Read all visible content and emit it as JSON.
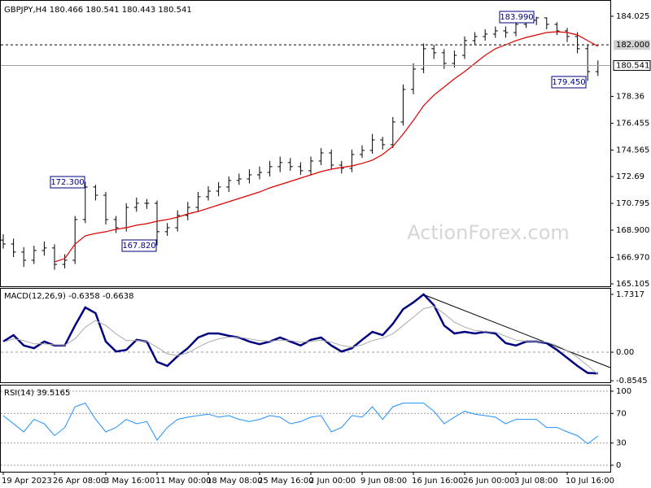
{
  "chart_data": [
    {
      "type": "ohlc",
      "title": "GBPJPY,H4  180.466 180.541 180.443 180.541",
      "watermark": "ActionForex.com",
      "color": "#000000",
      "categories": [
        "19 Apr 2023",
        null,
        null,
        null,
        null,
        "26 Apr 08:00",
        null,
        null,
        null,
        null,
        "3 May 16:00",
        null,
        null,
        null,
        null,
        "11 May 00:00",
        null,
        null,
        null,
        null,
        "18 May 08:00",
        null,
        null,
        null,
        null,
        "25 May 16:00",
        null,
        null,
        null,
        null,
        "2 Jun 00:00",
        null,
        null,
        null,
        null,
        "9 Jun 08:00",
        null,
        null,
        null,
        null,
        "16 Jun 16:00",
        null,
        null,
        null,
        null,
        "26 Jun 00:00",
        null,
        null,
        null,
        null,
        "3 Jul 08:00",
        null,
        null,
        null,
        null,
        "10 Jul 16:00",
        null,
        null,
        null
      ],
      "open": [
        168.2,
        167.92,
        167.35,
        166.77,
        167.46,
        167.64,
        166.48,
        166.77,
        169.65,
        171.95,
        171.37,
        169.65,
        169.07,
        170.51,
        170.8,
        170.8,
        168.79,
        169.07,
        169.94,
        170.51,
        171.26,
        171.66,
        171.95,
        172.41,
        172.52,
        172.81,
        172.98,
        173.39,
        173.68,
        173.39,
        173.1,
        173.79,
        174.36,
        173.5,
        173.27,
        174.25,
        174.54,
        175.28,
        174.94,
        176.55,
        178.85,
        180.29,
        181.73,
        181.44,
        180.69,
        181.26,
        182.3,
        182.59,
        182.76,
        182.99,
        182.87,
        183.45,
        183.74,
        183.91,
        183.45,
        182.99,
        182.59,
        181.73,
        180.11
      ],
      "high": [
        168.6,
        168.3,
        167.7,
        167.8,
        168.1,
        167.9,
        167.2,
        169.9,
        172.3,
        172.1,
        171.6,
        169.9,
        170.8,
        171.2,
        171.1,
        171.0,
        169.4,
        170.3,
        170.9,
        171.6,
        172.0,
        172.3,
        172.7,
        172.9,
        173.2,
        173.4,
        173.8,
        174.1,
        174.0,
        173.7,
        174.1,
        174.7,
        174.6,
        173.8,
        174.6,
        174.9,
        175.7,
        175.5,
        176.9,
        179.2,
        180.7,
        182.1,
        182.0,
        181.7,
        181.6,
        182.6,
        182.9,
        183.1,
        183.3,
        183.3,
        183.8,
        183.95,
        183.99,
        183.95,
        183.6,
        183.2,
        182.9,
        182.0,
        180.9
      ],
      "low": [
        167.6,
        167.0,
        166.3,
        166.5,
        167.1,
        166.1,
        166.2,
        166.5,
        169.4,
        171.0,
        169.3,
        168.7,
        168.8,
        170.2,
        170.4,
        167.82,
        168.5,
        168.8,
        169.6,
        170.2,
        171.0,
        171.3,
        171.6,
        172.1,
        172.2,
        172.5,
        172.7,
        173.0,
        173.1,
        172.8,
        172.8,
        173.5,
        173.2,
        172.9,
        173.0,
        174.0,
        174.3,
        174.6,
        174.7,
        176.3,
        178.5,
        180.0,
        181.0,
        180.3,
        180.4,
        181.0,
        182.0,
        182.3,
        182.5,
        182.5,
        182.6,
        183.2,
        183.4,
        183.1,
        182.7,
        182.2,
        181.4,
        179.45,
        179.8
      ],
      "close": [
        167.92,
        167.35,
        166.77,
        167.46,
        167.64,
        166.48,
        166.77,
        169.65,
        171.95,
        171.37,
        169.65,
        169.07,
        170.51,
        170.8,
        170.8,
        168.79,
        169.07,
        169.94,
        170.51,
        171.26,
        171.66,
        171.95,
        172.41,
        172.52,
        172.81,
        172.98,
        173.39,
        173.68,
        173.39,
        173.1,
        173.79,
        174.36,
        173.5,
        173.27,
        174.25,
        174.54,
        175.28,
        174.94,
        176.55,
        178.85,
        180.29,
        181.73,
        181.44,
        180.69,
        181.26,
        182.3,
        182.59,
        182.76,
        182.99,
        182.87,
        183.45,
        183.74,
        183.91,
        183.45,
        182.99,
        182.59,
        181.73,
        180.11,
        180.541
      ],
      "overlay": {
        "color": "#e00000",
        "values": [
          null,
          null,
          null,
          null,
          null,
          166.66,
          166.89,
          167.92,
          168.5,
          168.67,
          168.79,
          168.96,
          169.07,
          169.25,
          169.36,
          169.53,
          169.65,
          169.82,
          170.05,
          170.22,
          170.45,
          170.68,
          170.91,
          171.14,
          171.37,
          171.6,
          171.89,
          172.12,
          172.35,
          172.58,
          172.81,
          173.04,
          173.21,
          173.33,
          173.44,
          173.62,
          173.85,
          174.25,
          174.82,
          175.69,
          176.66,
          177.7,
          178.45,
          179.02,
          179.6,
          180.11,
          180.69,
          181.26,
          181.73,
          182.01,
          182.3,
          182.53,
          182.7,
          182.87,
          182.93,
          182.87,
          182.7,
          182.3,
          181.9
        ]
      },
      "hlines": [
        {
          "value": 182.0,
          "label": "182.000",
          "style": "dashed"
        },
        {
          "value": 180.541,
          "label": "180.541",
          "style": "solid"
        }
      ],
      "annotations": [
        "172.300",
        "167.820",
        "183.990",
        "179.450"
      ],
      "ylim": [
        164.93,
        185.0
      ],
      "yticks": [
        184.025,
        178.36,
        176.455,
        174.565,
        172.69,
        170.795,
        {
          "value": 168.9,
          "label": "168.900"
        },
        {
          "value": 166.97,
          "label": "166.970"
        },
        165.105
      ],
      "grid": false
    },
    {
      "type": "line",
      "title": "MACD(12,26,9) -0.6358 -0.6638",
      "series": [
        {
          "color": "#000080",
          "values": [
            0.32,
            0.51,
            0.2,
            0.12,
            0.32,
            0.2,
            0.2,
            0.8,
            1.34,
            1.17,
            0.32,
            0.02,
            0.07,
            0.37,
            0.32,
            -0.29,
            -0.41,
            -0.12,
            0.12,
            0.44,
            0.56,
            0.56,
            0.49,
            0.44,
            0.32,
            0.24,
            0.32,
            0.44,
            0.32,
            0.2,
            0.37,
            0.44,
            0.2,
            0.02,
            0.12,
            0.37,
            0.61,
            0.51,
            0.85,
            1.29,
            1.49,
            1.7317,
            1.41,
            0.8,
            0.56,
            0.61,
            0.56,
            0.61,
            0.56,
            0.27,
            0.2,
            0.32,
            0.32,
            0.27,
            0.07,
            -0.17,
            -0.41,
            -0.62,
            -0.6358
          ]
        },
        {
          "color": "#a9a9a9",
          "values": [
            0.3,
            0.4,
            0.35,
            0.25,
            0.25,
            0.22,
            0.21,
            0.4,
            0.75,
            0.95,
            0.8,
            0.55,
            0.35,
            0.35,
            0.33,
            0.15,
            -0.05,
            -0.1,
            -0.02,
            0.15,
            0.3,
            0.4,
            0.45,
            0.45,
            0.4,
            0.35,
            0.33,
            0.36,
            0.35,
            0.3,
            0.32,
            0.36,
            0.3,
            0.2,
            0.15,
            0.22,
            0.35,
            0.42,
            0.55,
            0.8,
            1.05,
            1.3,
            1.38,
            1.15,
            0.9,
            0.75,
            0.65,
            0.62,
            0.6,
            0.48,
            0.36,
            0.33,
            0.32,
            0.3,
            0.2,
            0.05,
            -0.15,
            -0.4,
            -0.6638
          ]
        }
      ],
      "ylim": [
        -0.9,
        1.9
      ],
      "yticks": [
        1.7317,
        {
          "value": 0,
          "label": "0.00"
        },
        -0.8545
      ],
      "zero_line": true,
      "grid": false
    },
    {
      "type": "line",
      "title": "RSI(14) 39.5165",
      "series": [
        {
          "color": "#1e90ff",
          "values": [
            67,
            56,
            45,
            62,
            56,
            40,
            51,
            79,
            84,
            62,
            45,
            51,
            62,
            56,
            59,
            34,
            51,
            62,
            65,
            67,
            69,
            65,
            67,
            62,
            59,
            62,
            67,
            65,
            56,
            59,
            65,
            67,
            45,
            51,
            67,
            65,
            79,
            62,
            79,
            84,
            84,
            84,
            73,
            56,
            65,
            73,
            69,
            67,
            65,
            56,
            62,
            62,
            62,
            51,
            51,
            45,
            40,
            29,
            39.5165
          ]
        }
      ],
      "ylim": [
        -8.8,
        107.7
      ],
      "yticks": [
        100,
        70,
        30,
        0
      ],
      "grid": true
    }
  ]
}
